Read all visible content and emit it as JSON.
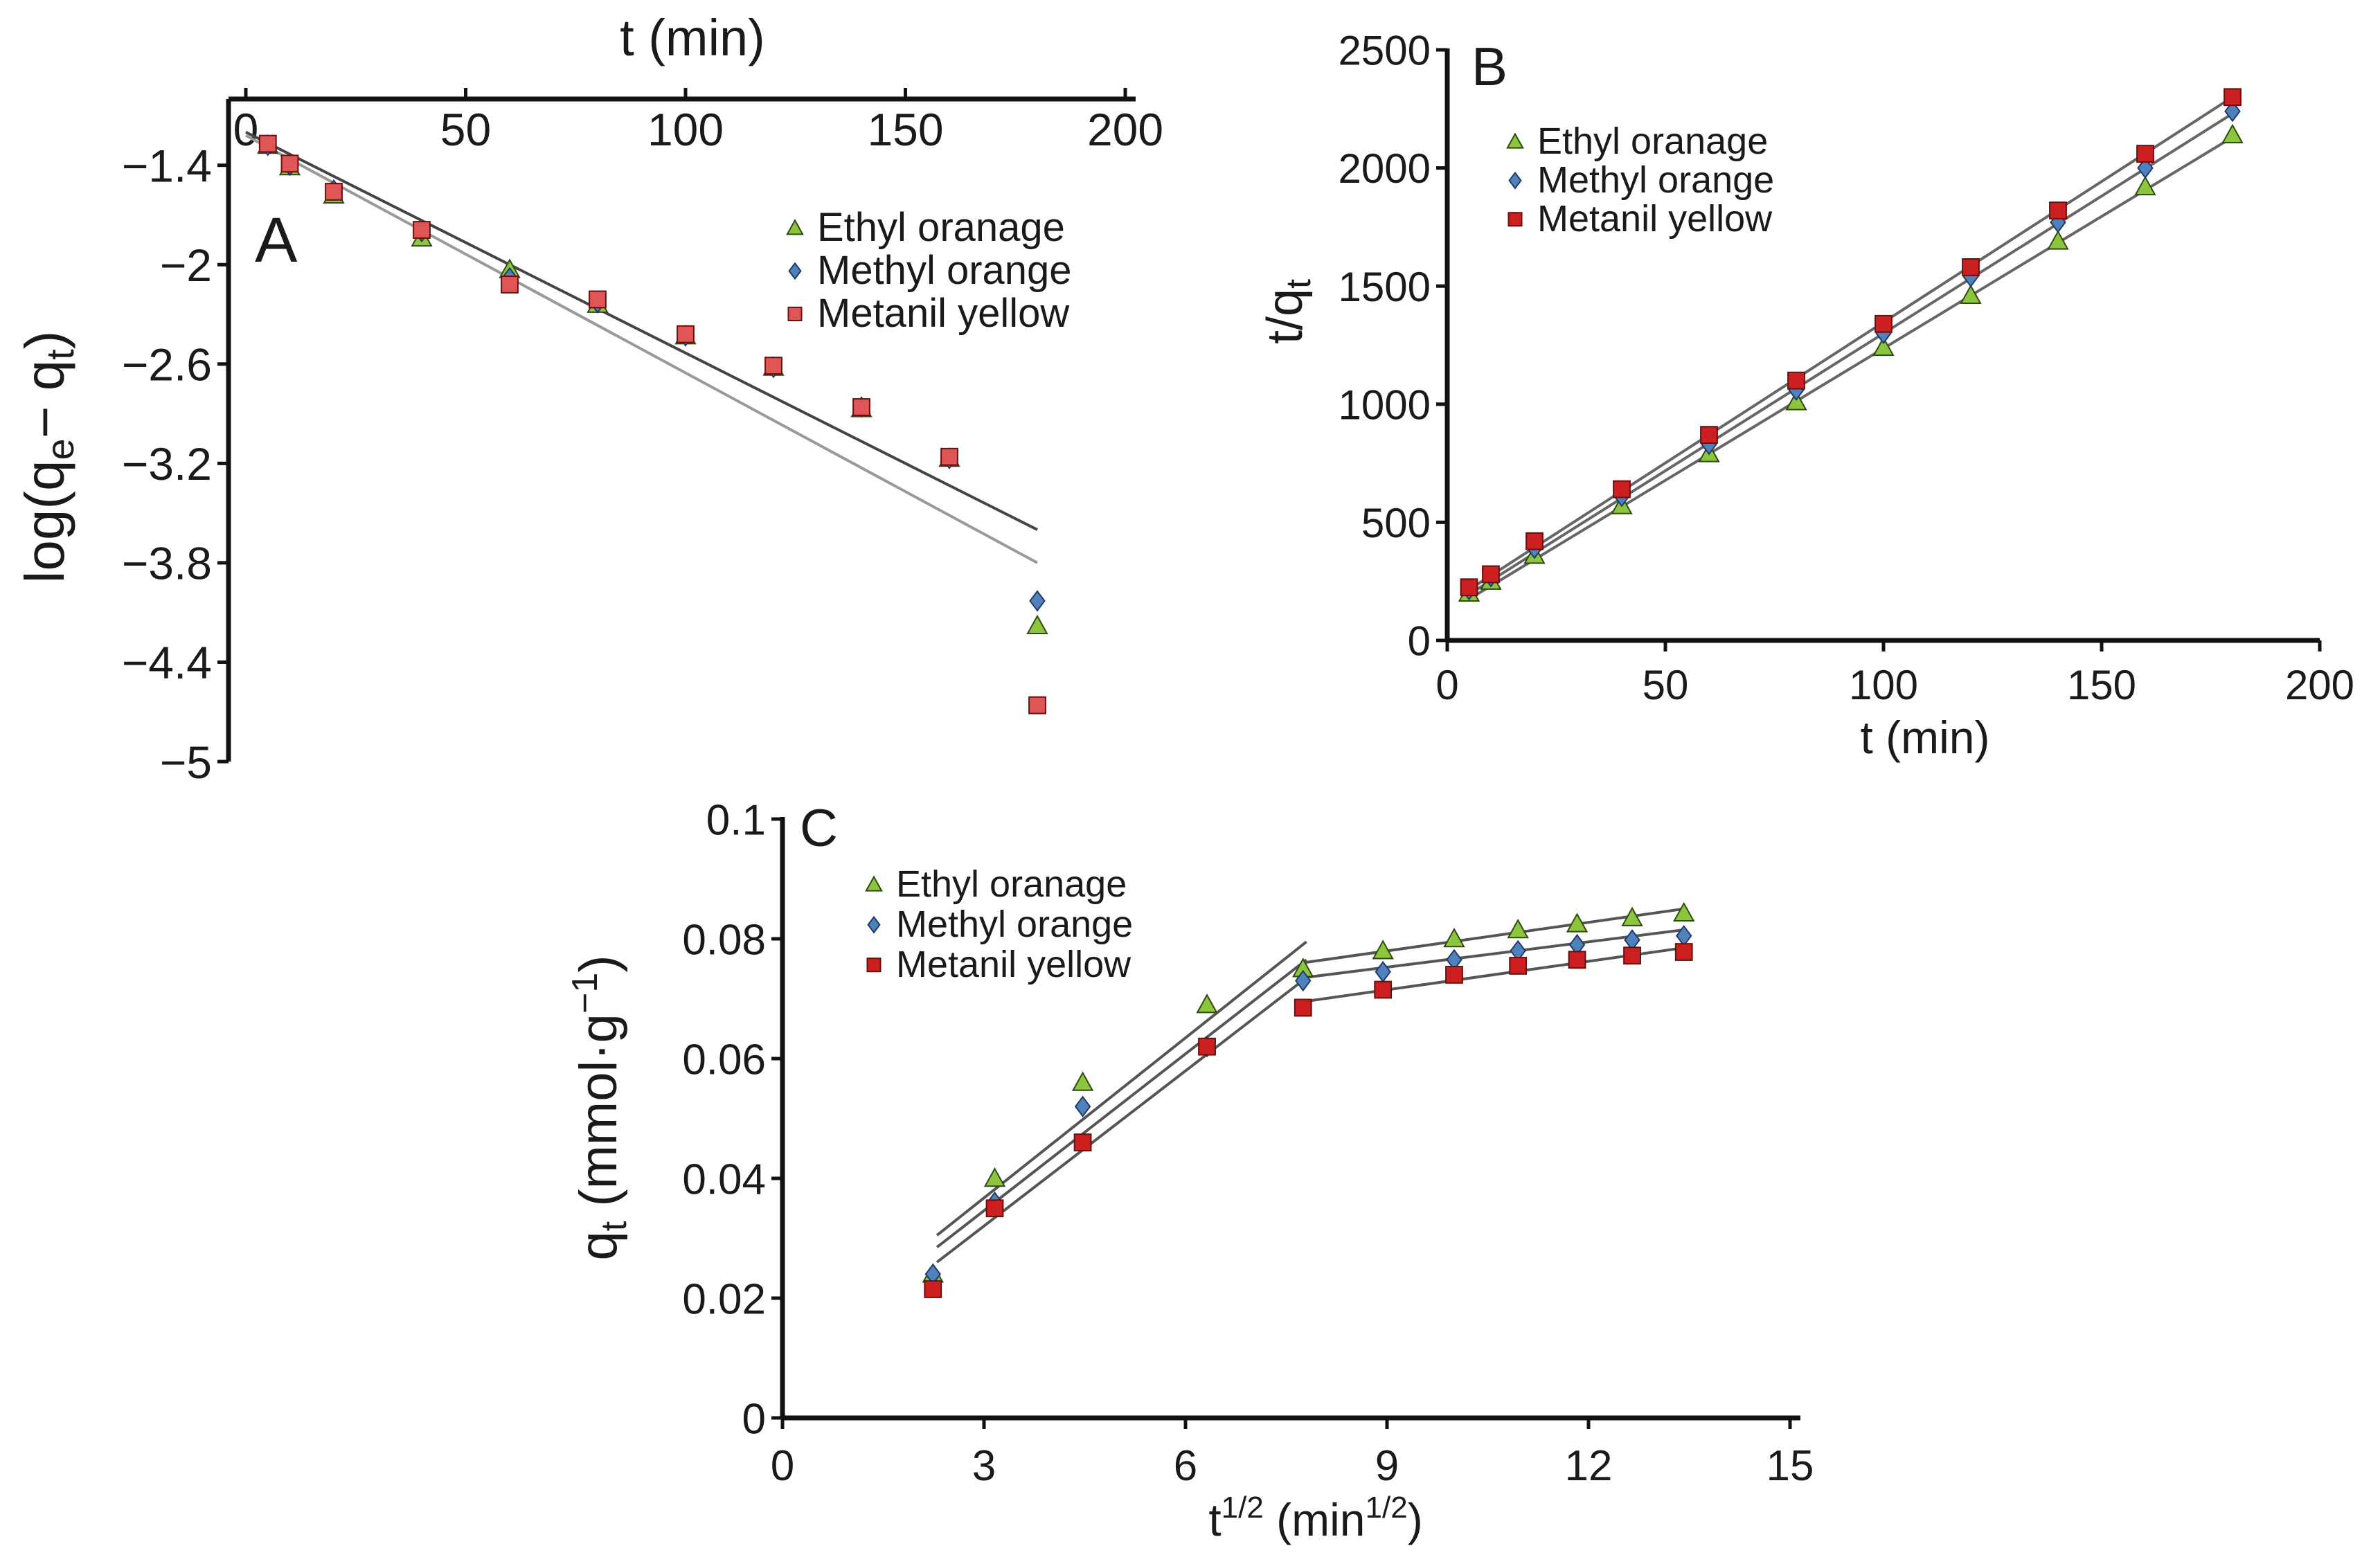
{
  "chart_data": [
    {
      "panel": "A",
      "type": "scatter",
      "title": "",
      "panel_label": "A",
      "xlabel": "t (min)",
      "ylabel_main": "log(q",
      "ylabel_sub1": "e",
      "ylabel_mid": "− q",
      "ylabel_sub2": "t",
      "ylabel_close": ")",
      "xaxis_position": "top",
      "xlim": [
        0,
        200
      ],
      "ylim": [
        -5,
        -1.0
      ],
      "xticks": [
        "0",
        "50",
        "100",
        "150",
        "200"
      ],
      "yticks": [
        "−1.4",
        "−2",
        "−2.6",
        "−3.2",
        "−3.8",
        "−4.4",
        "−5"
      ],
      "legend_position": "upper-right",
      "x": [
        5,
        10,
        20,
        40,
        60,
        80,
        100,
        120,
        140,
        160,
        180
      ],
      "series": [
        {
          "name": "Ethyl oranage",
          "marker": "triangle",
          "color": "#8cc63f",
          "values": [
            -1.28,
            -1.41,
            -1.58,
            -1.84,
            -2.03,
            -2.24,
            -2.43,
            -2.62,
            -2.87,
            -3.17,
            -4.18
          ]
        },
        {
          "name": "Methyl orange",
          "marker": "diamond",
          "color": "#4f81bd",
          "values": [
            -1.28,
            -1.4,
            -1.55,
            -1.8,
            -2.08,
            -2.23,
            -2.43,
            -2.62,
            -2.86,
            -3.17,
            -4.03
          ]
        },
        {
          "name": "Metanil yellow",
          "marker": "square",
          "color": "#e05555",
          "values": [
            -1.27,
            -1.39,
            -1.56,
            -1.79,
            -2.12,
            -2.21,
            -2.42,
            -2.61,
            -2.86,
            -3.16,
            -4.66
          ]
        }
      ],
      "fit_lines": [
        {
          "color": "#444444",
          "x": [
            0,
            180
          ],
          "y": [
            -1.2,
            -3.6
          ]
        },
        {
          "color": "#999999",
          "x": [
            0,
            180
          ],
          "y": [
            -1.22,
            -3.8
          ]
        }
      ]
    },
    {
      "panel": "B",
      "type": "scatter",
      "title": "",
      "panel_label": "B",
      "xlabel": "t (min)",
      "ylabel_main": "t/q",
      "ylabel_sub": "t",
      "xlim": [
        0,
        200
      ],
      "ylim": [
        0,
        2500
      ],
      "xticks": [
        "0",
        "50",
        "100",
        "150",
        "200"
      ],
      "yticks": [
        "0",
        "500",
        "1000",
        "1500",
        "2000",
        "2500"
      ],
      "legend_position": "upper-left",
      "x": [
        5,
        10,
        20,
        40,
        60,
        80,
        100,
        120,
        140,
        160,
        180
      ],
      "series": [
        {
          "name": "Ethyl oranage",
          "marker": "triangle",
          "color": "#8cc63f",
          "values": [
            200,
            250,
            360,
            570,
            790,
            1010,
            1240,
            1460,
            1690,
            1920,
            2140
          ]
        },
        {
          "name": "Methyl orange",
          "marker": "diamond",
          "color": "#4f81bd",
          "values": [
            215,
            270,
            390,
            610,
            830,
            1060,
            1300,
            1540,
            1770,
            2000,
            2240
          ]
        },
        {
          "name": "Metanil yellow",
          "marker": "square",
          "color": "#cc1f1f",
          "values": [
            225,
            280,
            420,
            640,
            870,
            1100,
            1340,
            1580,
            1820,
            2060,
            2300
          ]
        }
      ],
      "fit_lines": [
        {
          "color": "#666666",
          "x": [
            5,
            180
          ],
          "y": [
            175,
            2130
          ]
        },
        {
          "color": "#666666",
          "x": [
            5,
            180
          ],
          "y": [
            195,
            2230
          ]
        },
        {
          "color": "#666666",
          "x": [
            5,
            180
          ],
          "y": [
            215,
            2300
          ]
        }
      ]
    },
    {
      "panel": "C",
      "type": "scatter",
      "title": "",
      "panel_label": "C",
      "xlabel_base": "t",
      "xlabel_sup": "1/2",
      "xlabel_paren": " (min",
      "xlabel_sup2": "1/2",
      "xlabel_close": ")",
      "ylabel_main": "q",
      "ylabel_sub": "t",
      "ylabel_unit": " (mmol·g",
      "ylabel_sup": "−1",
      "ylabel_close": ")",
      "xlim": [
        0,
        15
      ],
      "ylim": [
        0,
        0.1
      ],
      "xticks": [
        "0",
        "3",
        "6",
        "9",
        "12",
        "15"
      ],
      "yticks": [
        "0",
        "0.02",
        "0.04",
        "0.06",
        "0.08",
        "0.1"
      ],
      "legend_position": "upper-left",
      "x": [
        2.24,
        3.16,
        4.47,
        6.32,
        7.75,
        8.94,
        10.0,
        10.95,
        11.83,
        12.65,
        13.42
      ],
      "series": [
        {
          "name": "Ethyl oranage",
          "marker": "triangle",
          "color": "#8cc63f",
          "values": [
            0.024,
            0.04,
            0.056,
            0.069,
            0.075,
            0.078,
            0.08,
            0.0815,
            0.0825,
            0.0835,
            0.0843
          ]
        },
        {
          "name": "Methyl orange",
          "marker": "diamond",
          "color": "#4f81bd",
          "values": [
            0.024,
            0.036,
            0.052,
            0.062,
            0.073,
            0.0745,
            0.0765,
            0.078,
            0.079,
            0.0798,
            0.0805
          ]
        },
        {
          "name": "Metanil yellow",
          "marker": "square",
          "color": "#cc1f1f",
          "values": [
            0.0215,
            0.035,
            0.046,
            0.062,
            0.0685,
            0.0715,
            0.074,
            0.0755,
            0.0765,
            0.0772,
            0.0778
          ]
        }
      ],
      "fit_lines": [
        {
          "color": "#555555",
          "x": [
            2.3,
            7.8
          ],
          "y": [
            0.0305,
            0.0795
          ]
        },
        {
          "color": "#555555",
          "x": [
            2.3,
            7.8
          ],
          "y": [
            0.0285,
            0.0765
          ]
        },
        {
          "color": "#555555",
          "x": [
            2.3,
            7.8
          ],
          "y": [
            0.026,
            0.0735
          ]
        },
        {
          "color": "#555555",
          "x": [
            7.75,
            13.42
          ],
          "y": [
            0.076,
            0.085
          ]
        },
        {
          "color": "#555555",
          "x": [
            7.75,
            13.42
          ],
          "y": [
            0.0735,
            0.0815
          ]
        },
        {
          "color": "#555555",
          "x": [
            7.75,
            13.42
          ],
          "y": [
            0.0695,
            0.0785
          ]
        }
      ]
    }
  ]
}
